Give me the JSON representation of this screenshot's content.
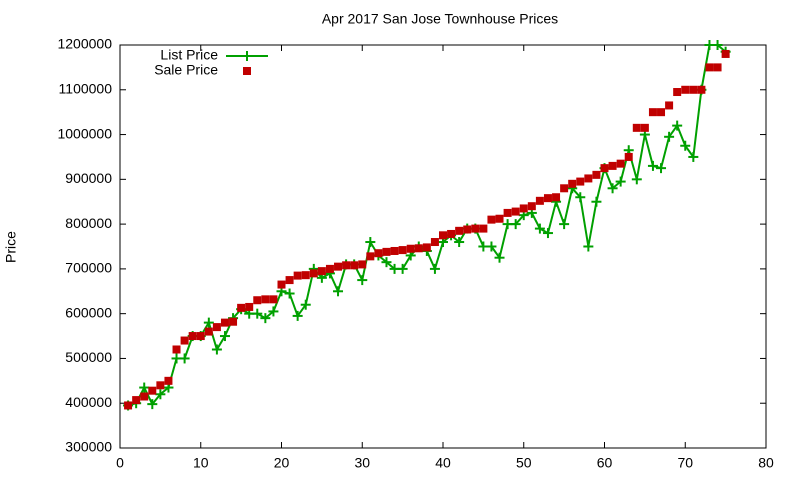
{
  "chart_data": {
    "type": "line",
    "title": "Apr 2017 San Jose Townhouse Prices",
    "y_label": "Price",
    "x": [
      1,
      2,
      3,
      4,
      5,
      6,
      7,
      8,
      9,
      10,
      11,
      12,
      13,
      14,
      15,
      16,
      17,
      18,
      19,
      20,
      21,
      22,
      23,
      24,
      25,
      26,
      27,
      28,
      29,
      30,
      31,
      32,
      33,
      34,
      35,
      36,
      37,
      38,
      39,
      40,
      41,
      42,
      43,
      44,
      45,
      46,
      47,
      48,
      49,
      50,
      51,
      52,
      53,
      54,
      55,
      56,
      57,
      58,
      59,
      60,
      61,
      62,
      63,
      64,
      65,
      66,
      67,
      68,
      69,
      70,
      71,
      72,
      73,
      74,
      75
    ],
    "series": [
      {
        "name": "List Price",
        "color": "#00a000",
        "marker": "plus",
        "line": true,
        "values": [
          395000,
          400000,
          435000,
          398000,
          420000,
          435000,
          500000,
          500000,
          550000,
          550000,
          580000,
          520000,
          550000,
          590000,
          610000,
          600000,
          600000,
          590000,
          605000,
          650000,
          645000,
          595000,
          620000,
          700000,
          680000,
          690000,
          650000,
          710000,
          710000,
          675000,
          760000,
          730000,
          715000,
          700000,
          700000,
          730000,
          750000,
          740000,
          700000,
          760000,
          775000,
          760000,
          790000,
          790000,
          750000,
          750000,
          725000,
          800000,
          800000,
          820000,
          825000,
          790000,
          780000,
          850000,
          800000,
          880000,
          860000,
          750000,
          850000,
          925000,
          880000,
          895000,
          965000,
          900000,
          1000000,
          930000,
          925000,
          995000,
          1020000,
          975000,
          950000,
          1100000,
          1200000,
          1200000,
          1185000
        ]
      },
      {
        "name": "Sale Price",
        "color": "#c00000",
        "marker": "square",
        "line": false,
        "values": [
          395000,
          407000,
          415000,
          428000,
          440000,
          450000,
          520000,
          540000,
          550000,
          550000,
          560000,
          570000,
          580000,
          582000,
          613000,
          615000,
          630000,
          632000,
          632000,
          665000,
          675000,
          685000,
          686000,
          690000,
          695000,
          700000,
          705000,
          708000,
          708000,
          710000,
          728000,
          735000,
          738000,
          740000,
          742000,
          745000,
          746000,
          748000,
          760000,
          775000,
          778000,
          785000,
          788000,
          790000,
          790000,
          810000,
          812000,
          825000,
          828000,
          835000,
          840000,
          852000,
          858000,
          860000,
          880000,
          890000,
          895000,
          902000,
          910000,
          925000,
          930000,
          935000,
          950000,
          1015000,
          1015000,
          1050000,
          1050000,
          1065000,
          1095000,
          1100000,
          1100000,
          1100000,
          1150000,
          1150000,
          1180000
        ]
      }
    ],
    "xlim": [
      0,
      80
    ],
    "xticks": [
      0,
      10,
      20,
      30,
      40,
      50,
      60,
      70,
      80
    ],
    "ylim": [
      300000,
      1200000
    ],
    "yticks": [
      300000,
      400000,
      500000,
      600000,
      700000,
      800000,
      900000,
      1000000,
      1100000,
      1200000
    ],
    "legend": "top-left",
    "grid": false
  }
}
